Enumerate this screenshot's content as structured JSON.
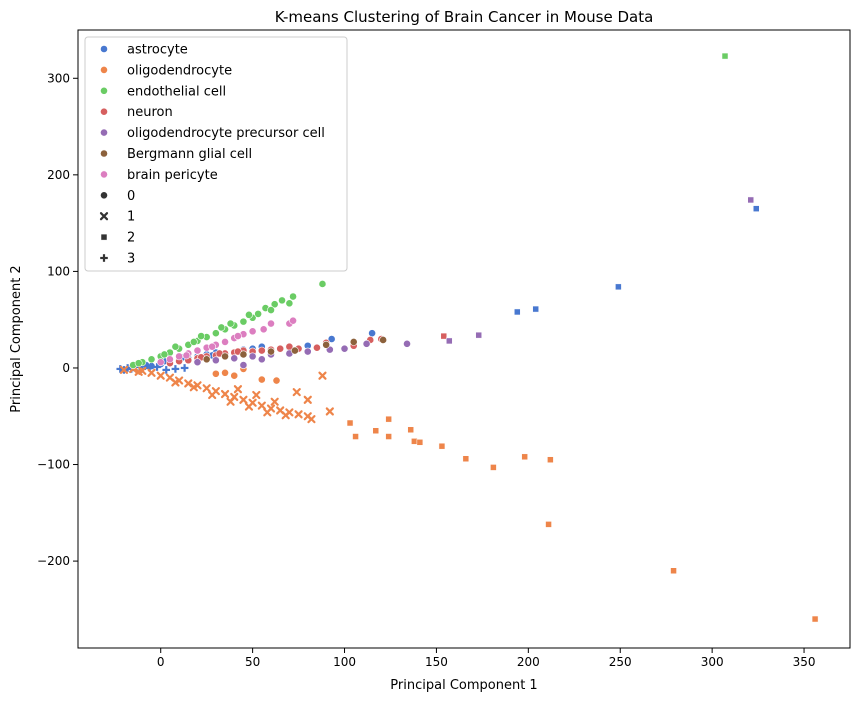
{
  "chart_data": {
    "type": "scatter",
    "title": "K-means Clustering of Brain Cancer in Mouse Data",
    "xlabel": "Principal Component 1",
    "ylabel": "Principal Component 2",
    "xlim": [
      -45,
      375
    ],
    "ylim": [
      -290,
      350
    ],
    "xticks": [
      0,
      50,
      100,
      150,
      200,
      250,
      300,
      350
    ],
    "yticks": [
      -200,
      -100,
      0,
      100,
      200,
      300
    ],
    "xtick_labels": [
      "0",
      "50",
      "100",
      "150",
      "200",
      "250",
      "300",
      "350"
    ],
    "ytick_labels": [
      "−200",
      "−100",
      "0",
      "100",
      "200",
      "300"
    ],
    "grid": false,
    "legend_position": "top-left",
    "hue_legend": [
      {
        "name": "astrocyte",
        "color": "#4878d0"
      },
      {
        "name": "oligodendrocyte",
        "color": "#ee854a"
      },
      {
        "name": "endothelial cell",
        "color": "#6acc64"
      },
      {
        "name": "neuron",
        "color": "#d65f5f"
      },
      {
        "name": "oligodendrocyte precursor cell",
        "color": "#956cb4"
      },
      {
        "name": "Bergmann glial cell",
        "color": "#8c613c"
      },
      {
        "name": "brain pericyte",
        "color": "#dc7ec0"
      }
    ],
    "style_legend": [
      {
        "name": "0",
        "marker": "circle"
      },
      {
        "name": "1",
        "marker": "x"
      },
      {
        "name": "2",
        "marker": "square"
      },
      {
        "name": "3",
        "marker": "plus"
      }
    ],
    "series": [
      {
        "label": "astrocyte",
        "cluster": "0",
        "color": "#4878d0",
        "marker": "circle",
        "points": [
          [
            -10,
            1
          ],
          [
            -5,
            2
          ],
          [
            0,
            4
          ],
          [
            5,
            6
          ],
          [
            10,
            8
          ],
          [
            15,
            10
          ],
          [
            20,
            12
          ],
          [
            25,
            14
          ],
          [
            30,
            16
          ],
          [
            35,
            14
          ],
          [
            40,
            16
          ],
          [
            45,
            19
          ],
          [
            50,
            20
          ],
          [
            60,
            19
          ],
          [
            70,
            21
          ],
          [
            80,
            23
          ],
          [
            93,
            30
          ],
          [
            115,
            36
          ],
          [
            -15,
            0
          ],
          [
            -8,
            3
          ],
          [
            2,
            7
          ],
          [
            12,
            11
          ],
          [
            28,
            13
          ],
          [
            55,
            22
          ]
        ]
      },
      {
        "label": "astrocyte",
        "cluster": "2",
        "color": "#4878d0",
        "marker": "square",
        "points": [
          [
            194,
            58
          ],
          [
            204,
            61
          ],
          [
            249,
            84
          ],
          [
            324,
            165
          ]
        ]
      },
      {
        "label": "astrocyte",
        "cluster": "3",
        "color": "#4878d0",
        "marker": "plus",
        "points": [
          [
            -22,
            -1
          ],
          [
            -18,
            0
          ],
          [
            -14,
            1
          ],
          [
            -10,
            -1
          ],
          [
            -6,
            0
          ],
          [
            -2,
            1
          ],
          [
            3,
            -2
          ],
          [
            8,
            -1
          ],
          [
            13,
            0
          ],
          [
            -20,
            -2
          ],
          [
            -16,
            -1
          ]
        ]
      },
      {
        "label": "oligodendrocyte",
        "cluster": "0",
        "color": "#ee854a",
        "marker": "circle",
        "points": [
          [
            45,
            -1
          ],
          [
            55,
            -12
          ],
          [
            63,
            -13
          ],
          [
            35,
            -5
          ],
          [
            40,
            -8
          ],
          [
            30,
            -6
          ]
        ]
      },
      {
        "label": "oligodendrocyte",
        "cluster": "1",
        "color": "#ee854a",
        "marker": "x",
        "points": [
          [
            -15,
            -1
          ],
          [
            -10,
            -3
          ],
          [
            -5,
            -5
          ],
          [
            0,
            -8
          ],
          [
            5,
            -10
          ],
          [
            10,
            -13
          ],
          [
            15,
            -16
          ],
          [
            20,
            -18
          ],
          [
            25,
            -21
          ],
          [
            30,
            -24
          ],
          [
            35,
            -27
          ],
          [
            40,
            -30
          ],
          [
            45,
            -33
          ],
          [
            50,
            -36
          ],
          [
            55,
            -39
          ],
          [
            60,
            -42
          ],
          [
            65,
            -44
          ],
          [
            70,
            -46
          ],
          [
            75,
            -48
          ],
          [
            80,
            -50
          ],
          [
            82,
            -53
          ],
          [
            88,
            -8
          ],
          [
            74,
            -25
          ],
          [
            80,
            -33
          ],
          [
            92,
            -45
          ],
          [
            -20,
            -2
          ],
          [
            -12,
            -4
          ],
          [
            8,
            -15
          ],
          [
            18,
            -20
          ],
          [
            28,
            -28
          ],
          [
            38,
            -35
          ],
          [
            48,
            -40
          ],
          [
            58,
            -46
          ],
          [
            68,
            -49
          ],
          [
            42,
            -22
          ],
          [
            52,
            -28
          ],
          [
            62,
            -35
          ]
        ]
      },
      {
        "label": "oligodendrocyte",
        "cluster": "2",
        "color": "#ee854a",
        "marker": "square",
        "points": [
          [
            103,
            -57
          ],
          [
            106,
            -71
          ],
          [
            117,
            -65
          ],
          [
            124,
            -53
          ],
          [
            124,
            -71
          ],
          [
            136,
            -64
          ],
          [
            138,
            -76
          ],
          [
            141,
            -77
          ],
          [
            153,
            -81
          ],
          [
            166,
            -94
          ],
          [
            181,
            -103
          ],
          [
            198,
            -92
          ],
          [
            212,
            -95
          ],
          [
            211,
            -162
          ],
          [
            279,
            -210
          ],
          [
            356,
            -260
          ]
        ]
      },
      {
        "label": "endothelial cell",
        "cluster": "0",
        "color": "#6acc64",
        "marker": "circle",
        "points": [
          [
            -15,
            3
          ],
          [
            -10,
            6
          ],
          [
            -5,
            9
          ],
          [
            0,
            12
          ],
          [
            5,
            16
          ],
          [
            10,
            20
          ],
          [
            15,
            24
          ],
          [
            20,
            28
          ],
          [
            25,
            32
          ],
          [
            30,
            36
          ],
          [
            35,
            40
          ],
          [
            40,
            44
          ],
          [
            45,
            48
          ],
          [
            50,
            52
          ],
          [
            53,
            56
          ],
          [
            57,
            62
          ],
          [
            62,
            66
          ],
          [
            66,
            70
          ],
          [
            72,
            74
          ],
          [
            88,
            87
          ],
          [
            -12,
            5
          ],
          [
            2,
            14
          ],
          [
            18,
            27
          ],
          [
            33,
            42
          ],
          [
            48,
            55
          ],
          [
            60,
            60
          ],
          [
            70,
            67
          ],
          [
            8,
            22
          ],
          [
            22,
            33
          ],
          [
            38,
            46
          ]
        ]
      },
      {
        "label": "endothelial cell",
        "cluster": "2",
        "color": "#6acc64",
        "marker": "square",
        "points": [
          [
            307,
            323
          ]
        ]
      },
      {
        "label": "neuron",
        "cluster": "0",
        "color": "#d65f5f",
        "marker": "circle",
        "points": [
          [
            5,
            5
          ],
          [
            10,
            7
          ],
          [
            15,
            8
          ],
          [
            20,
            10
          ],
          [
            25,
            12
          ],
          [
            30,
            13
          ],
          [
            35,
            15
          ],
          [
            40,
            16
          ],
          [
            45,
            18
          ],
          [
            50,
            17
          ],
          [
            55,
            18
          ],
          [
            60,
            19
          ],
          [
            65,
            20
          ],
          [
            70,
            22
          ],
          [
            75,
            20
          ],
          [
            85,
            21
          ],
          [
            90,
            26
          ],
          [
            105,
            23
          ],
          [
            114,
            29
          ],
          [
            120,
            30
          ],
          [
            22,
            11
          ],
          [
            32,
            15
          ],
          [
            42,
            17
          ]
        ]
      },
      {
        "label": "neuron",
        "cluster": "2",
        "color": "#d65f5f",
        "marker": "square",
        "points": [
          [
            154,
            33
          ]
        ]
      },
      {
        "label": "oligodendrocyte precursor cell",
        "cluster": "0",
        "color": "#956cb4",
        "marker": "circle",
        "points": [
          [
            20,
            6
          ],
          [
            30,
            8
          ],
          [
            40,
            10
          ],
          [
            50,
            12
          ],
          [
            60,
            14
          ],
          [
            70,
            15
          ],
          [
            80,
            17
          ],
          [
            92,
            19
          ],
          [
            100,
            20
          ],
          [
            112,
            25
          ],
          [
            134,
            25
          ],
          [
            45,
            3
          ],
          [
            55,
            9
          ]
        ]
      },
      {
        "label": "oligodendrocyte precursor cell",
        "cluster": "2",
        "color": "#956cb4",
        "marker": "square",
        "points": [
          [
            157,
            28
          ],
          [
            173,
            34
          ],
          [
            321,
            174
          ]
        ]
      },
      {
        "label": "Bergmann glial cell",
        "cluster": "0",
        "color": "#8c613c",
        "marker": "circle",
        "points": [
          [
            25,
            9
          ],
          [
            35,
            12
          ],
          [
            45,
            14
          ],
          [
            60,
            17
          ],
          [
            73,
            18
          ],
          [
            90,
            24
          ],
          [
            105,
            27
          ],
          [
            121,
            29
          ]
        ]
      },
      {
        "label": "brain pericyte",
        "cluster": "0",
        "color": "#dc7ec0",
        "marker": "circle",
        "points": [
          [
            0,
            6
          ],
          [
            5,
            9
          ],
          [
            10,
            12
          ],
          [
            15,
            15
          ],
          [
            20,
            18
          ],
          [
            25,
            21
          ],
          [
            30,
            24
          ],
          [
            35,
            27
          ],
          [
            40,
            31
          ],
          [
            45,
            35
          ],
          [
            50,
            38
          ],
          [
            56,
            40
          ],
          [
            60,
            46
          ],
          [
            70,
            46
          ],
          [
            72,
            49
          ],
          [
            14,
            13
          ],
          [
            28,
            22
          ],
          [
            42,
            33
          ]
        ]
      }
    ]
  }
}
